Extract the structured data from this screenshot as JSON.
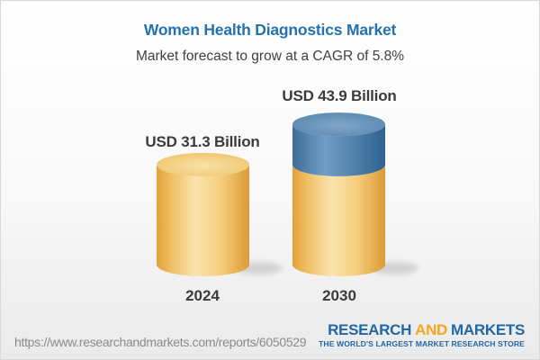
{
  "header": {
    "title": "Women Health Diagnostics Market",
    "subtitle": "Market forecast to grow at a CAGR of 5.8%"
  },
  "chart_data": {
    "type": "bar",
    "variant": "3d-cylinder-stacked",
    "title": "Women Health Diagnostics Market",
    "subtitle": "Market forecast to grow at a CAGR of 5.8%",
    "categories": [
      "2024",
      "2030"
    ],
    "values": [
      31.3,
      43.9
    ],
    "value_labels": [
      "USD 31.3 Billion",
      "USD 43.9 Billion"
    ],
    "unit": "USD Billion",
    "cagr_percent": 5.8,
    "growth_segment": {
      "category": "2030",
      "from": 31.3,
      "to": 43.9
    },
    "ylim": [
      0,
      44
    ],
    "grid": false,
    "legend": false,
    "colors": {
      "gold_body": [
        "#E2A03A",
        "#EFBD60",
        "#FAE4AE",
        "#F5CF80",
        "#DD9B35"
      ],
      "gold_top": [
        "#F8E2A4",
        "#ECBC5F"
      ],
      "blue_body": [
        "#3E6D9A",
        "#6F9EC4",
        "#4F80AB",
        "#2E6190"
      ],
      "blue_top": [
        "#7FA7CA",
        "#4E7EA8"
      ],
      "shadow": "#ADADAD"
    }
  },
  "footer": {
    "url": "https://www.researchandmarkets.com/reports/6050529",
    "logo": {
      "word1": "RESEARCH",
      "word2": "AND",
      "word3": "MARKETS",
      "tagline": "THE WORLD'S LARGEST MARKET RESEARCH STORE",
      "blue": "#2167A4",
      "amber": "#F2A71E"
    }
  }
}
